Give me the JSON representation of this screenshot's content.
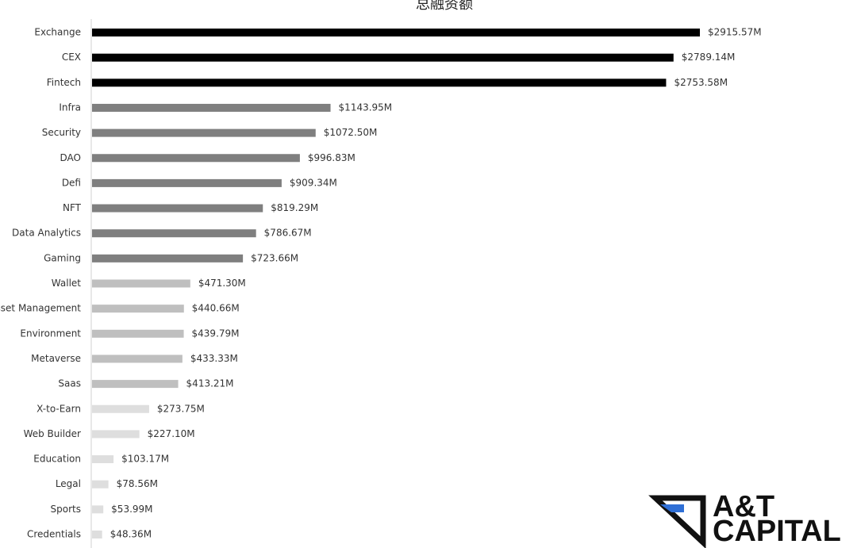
{
  "chart_data": {
    "type": "bar",
    "orientation": "horizontal",
    "title": "总融资额",
    "categories": [
      "Exchange",
      "CEX",
      "Fintech",
      "Infra",
      "Security",
      "DAO",
      "Defi",
      "NFT",
      "Data Analytics",
      "Gaming",
      "Wallet",
      "Asset Management",
      "Environment",
      "Metaverse",
      "Saas",
      "X-to-Earn",
      "Web Builder",
      "Education",
      "Legal",
      "Sports",
      "Credentials"
    ],
    "values": [
      2915.57,
      2789.14,
      2753.58,
      1143.95,
      1072.5,
      996.83,
      909.34,
      819.29,
      786.67,
      723.66,
      471.3,
      440.66,
      439.79,
      433.33,
      413.21,
      273.75,
      227.1,
      103.17,
      78.56,
      53.99,
      48.36
    ],
    "value_labels": [
      "$2915.57M",
      "$2789.14M",
      "$2753.58M",
      "$1143.95M",
      "$1072.50M",
      "$996.83M",
      "$909.34M",
      "$819.29M",
      "$786.67M",
      "$723.66M",
      "$471.30M",
      "$440.66M",
      "$439.79M",
      "$433.33M",
      "$413.21M",
      "$273.75M",
      "$227.10M",
      "$103.17M",
      "$78.56M",
      "$53.99M",
      "$48.36M"
    ],
    "colors": [
      "#000000",
      "#000000",
      "#000000",
      "#7f7f7f",
      "#7f7f7f",
      "#7f7f7f",
      "#7f7f7f",
      "#7f7f7f",
      "#7f7f7f",
      "#7f7f7f",
      "#bfbfbf",
      "#bfbfbf",
      "#bfbfbf",
      "#bfbfbf",
      "#bfbfbf",
      "#dedede",
      "#dedede",
      "#dedede",
      "#dedede",
      "#dedede",
      "#dedede"
    ]
  },
  "logo": {
    "line1": "A&T",
    "line2": "CAPITAL"
  }
}
